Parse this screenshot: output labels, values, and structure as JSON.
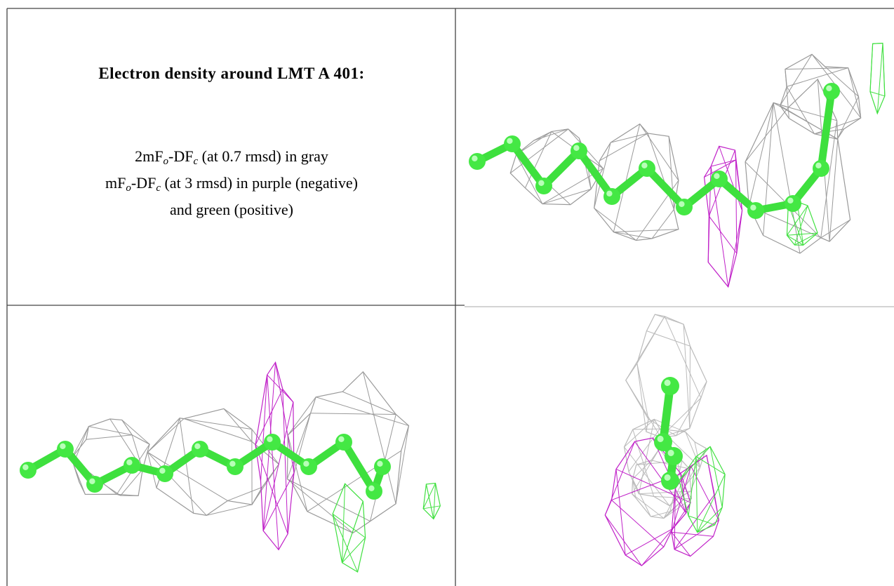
{
  "title": "Electron density around LMT A 401:",
  "legend": [
    {
      "parts": [
        "2mF",
        "o",
        "-DF",
        "c",
        " (at 0.7 rmsd) in gray"
      ]
    },
    {
      "parts": [
        "mF",
        "o",
        "-DF",
        "c",
        " (at 3 rmsd) in purple (negative)"
      ]
    },
    {
      "parts": [
        "and green (positive)"
      ]
    }
  ]
}
